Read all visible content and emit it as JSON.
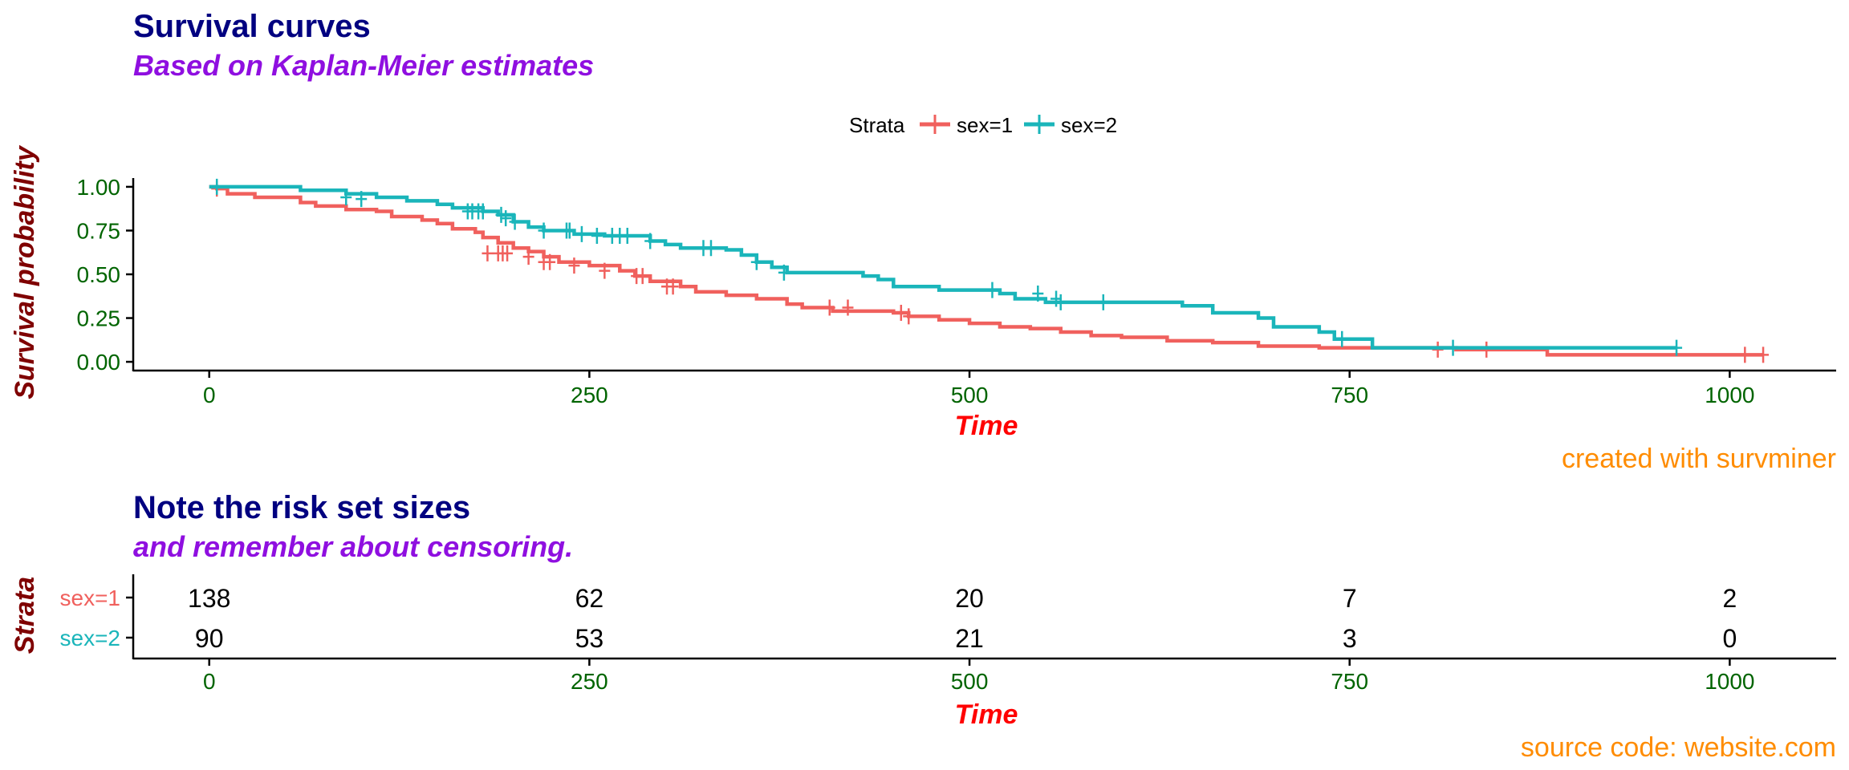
{
  "colors": {
    "sex1": "#f0605d",
    "sex2": "#1ab5ba",
    "title": "#000080",
    "subtitle": "#8f0fe0",
    "ylabel": "#7f0000",
    "xlabel": "#ff0000",
    "tick": "#006400",
    "caption": "#ff8c00",
    "axis": "#000000"
  },
  "survival_panel": {
    "title": "Survival curves",
    "subtitle": "Based on Kaplan-Meier estimates",
    "caption": "created with survminer"
  },
  "risk_panel": {
    "title": "Note the risk set sizes",
    "subtitle": "and remember about censoring.",
    "caption": "source code: website.com",
    "ylabel": "Strata",
    "xlabel": "Time",
    "xticks": [
      0,
      250,
      500,
      750,
      1000
    ],
    "strata": [
      "sex=1",
      "sex=2"
    ],
    "rows": [
      {
        "name": "sex=1",
        "counts": [
          138,
          62,
          20,
          7,
          2
        ]
      },
      {
        "name": "sex=2",
        "counts": [
          90,
          53,
          21,
          3,
          0
        ]
      }
    ]
  },
  "chart_data": {
    "type": "line",
    "step": true,
    "title": "Survival curves",
    "subtitle": "Based on Kaplan-Meier estimates",
    "xlabel": "Time",
    "ylabel": "Survival probability",
    "xlim": [
      -50,
      1070
    ],
    "ylim": [
      -0.05,
      1.05
    ],
    "xticks": [
      0,
      250,
      500,
      750,
      1000
    ],
    "yticks": [
      0.0,
      0.25,
      0.5,
      0.75,
      1.0
    ],
    "ytick_labels": [
      "0.00",
      "0.25",
      "0.50",
      "0.75",
      "1.00"
    ],
    "legend_title": "Strata",
    "legend_position": "top",
    "grid": false,
    "series": [
      {
        "name": "sex=1",
        "color": "#f0605d",
        "points": [
          [
            0,
            1.0
          ],
          [
            5,
            0.99
          ],
          [
            12,
            0.96
          ],
          [
            30,
            0.94
          ],
          [
            60,
            0.91
          ],
          [
            70,
            0.89
          ],
          [
            90,
            0.87
          ],
          [
            110,
            0.86
          ],
          [
            120,
            0.83
          ],
          [
            140,
            0.81
          ],
          [
            150,
            0.79
          ],
          [
            160,
            0.76
          ],
          [
            175,
            0.74
          ],
          [
            180,
            0.71
          ],
          [
            190,
            0.68
          ],
          [
            200,
            0.65
          ],
          [
            210,
            0.63
          ],
          [
            220,
            0.6
          ],
          [
            230,
            0.57
          ],
          [
            250,
            0.55
          ],
          [
            270,
            0.52
          ],
          [
            280,
            0.49
          ],
          [
            290,
            0.46
          ],
          [
            310,
            0.43
          ],
          [
            320,
            0.4
          ],
          [
            340,
            0.38
          ],
          [
            360,
            0.36
          ],
          [
            380,
            0.33
          ],
          [
            390,
            0.31
          ],
          [
            410,
            0.29
          ],
          [
            450,
            0.28
          ],
          [
            460,
            0.26
          ],
          [
            480,
            0.24
          ],
          [
            500,
            0.22
          ],
          [
            520,
            0.2
          ],
          [
            540,
            0.19
          ],
          [
            560,
            0.17
          ],
          [
            580,
            0.15
          ],
          [
            600,
            0.14
          ],
          [
            630,
            0.12
          ],
          [
            660,
            0.11
          ],
          [
            690,
            0.09
          ],
          [
            730,
            0.08
          ],
          [
            820,
            0.07
          ],
          [
            880,
            0.04
          ],
          [
            1022,
            0.04
          ]
        ],
        "censored": [
          [
            5,
            0.99
          ],
          [
            183,
            0.62
          ],
          [
            190,
            0.62
          ],
          [
            193,
            0.62
          ],
          [
            196,
            0.62
          ],
          [
            210,
            0.6
          ],
          [
            220,
            0.57
          ],
          [
            224,
            0.57
          ],
          [
            240,
            0.55
          ],
          [
            260,
            0.52
          ],
          [
            281,
            0.49
          ],
          [
            285,
            0.49
          ],
          [
            301,
            0.43
          ],
          [
            305,
            0.43
          ],
          [
            408,
            0.31
          ],
          [
            420,
            0.31
          ],
          [
            455,
            0.28
          ],
          [
            460,
            0.26
          ],
          [
            808,
            0.07
          ],
          [
            840,
            0.07
          ],
          [
            1010,
            0.04
          ],
          [
            1022,
            0.04
          ]
        ]
      },
      {
        "name": "sex=2",
        "color": "#1ab5ba",
        "points": [
          [
            0,
            1.0
          ],
          [
            60,
            0.98
          ],
          [
            90,
            0.96
          ],
          [
            110,
            0.94
          ],
          [
            130,
            0.92
          ],
          [
            150,
            0.9
          ],
          [
            160,
            0.88
          ],
          [
            180,
            0.86
          ],
          [
            190,
            0.84
          ],
          [
            200,
            0.8
          ],
          [
            210,
            0.77
          ],
          [
            220,
            0.75
          ],
          [
            240,
            0.73
          ],
          [
            260,
            0.72
          ],
          [
            290,
            0.69
          ],
          [
            300,
            0.67
          ],
          [
            310,
            0.65
          ],
          [
            340,
            0.64
          ],
          [
            350,
            0.61
          ],
          [
            360,
            0.57
          ],
          [
            370,
            0.54
          ],
          [
            380,
            0.51
          ],
          [
            430,
            0.49
          ],
          [
            440,
            0.47
          ],
          [
            450,
            0.43
          ],
          [
            480,
            0.41
          ],
          [
            520,
            0.39
          ],
          [
            530,
            0.36
          ],
          [
            550,
            0.34
          ],
          [
            640,
            0.32
          ],
          [
            660,
            0.28
          ],
          [
            690,
            0.25
          ],
          [
            700,
            0.2
          ],
          [
            730,
            0.17
          ],
          [
            740,
            0.13
          ],
          [
            765,
            0.08
          ],
          [
            965,
            0.08
          ]
        ],
        "censored": [
          [
            5,
            1.0
          ],
          [
            90,
            0.94
          ],
          [
            100,
            0.93
          ],
          [
            170,
            0.86
          ],
          [
            173,
            0.86
          ],
          [
            177,
            0.86
          ],
          [
            180,
            0.86
          ],
          [
            192,
            0.84
          ],
          [
            195,
            0.82
          ],
          [
            201,
            0.8
          ],
          [
            220,
            0.75
          ],
          [
            235,
            0.75
          ],
          [
            237,
            0.75
          ],
          [
            245,
            0.73
          ],
          [
            255,
            0.72
          ],
          [
            265,
            0.72
          ],
          [
            270,
            0.72
          ],
          [
            275,
            0.72
          ],
          [
            290,
            0.69
          ],
          [
            325,
            0.65
          ],
          [
            330,
            0.65
          ],
          [
            360,
            0.57
          ],
          [
            378,
            0.51
          ],
          [
            515,
            0.41
          ],
          [
            545,
            0.39
          ],
          [
            557,
            0.36
          ],
          [
            560,
            0.34
          ],
          [
            588,
            0.34
          ],
          [
            745,
            0.13
          ],
          [
            818,
            0.08
          ],
          [
            965,
            0.08
          ]
        ]
      }
    ]
  }
}
